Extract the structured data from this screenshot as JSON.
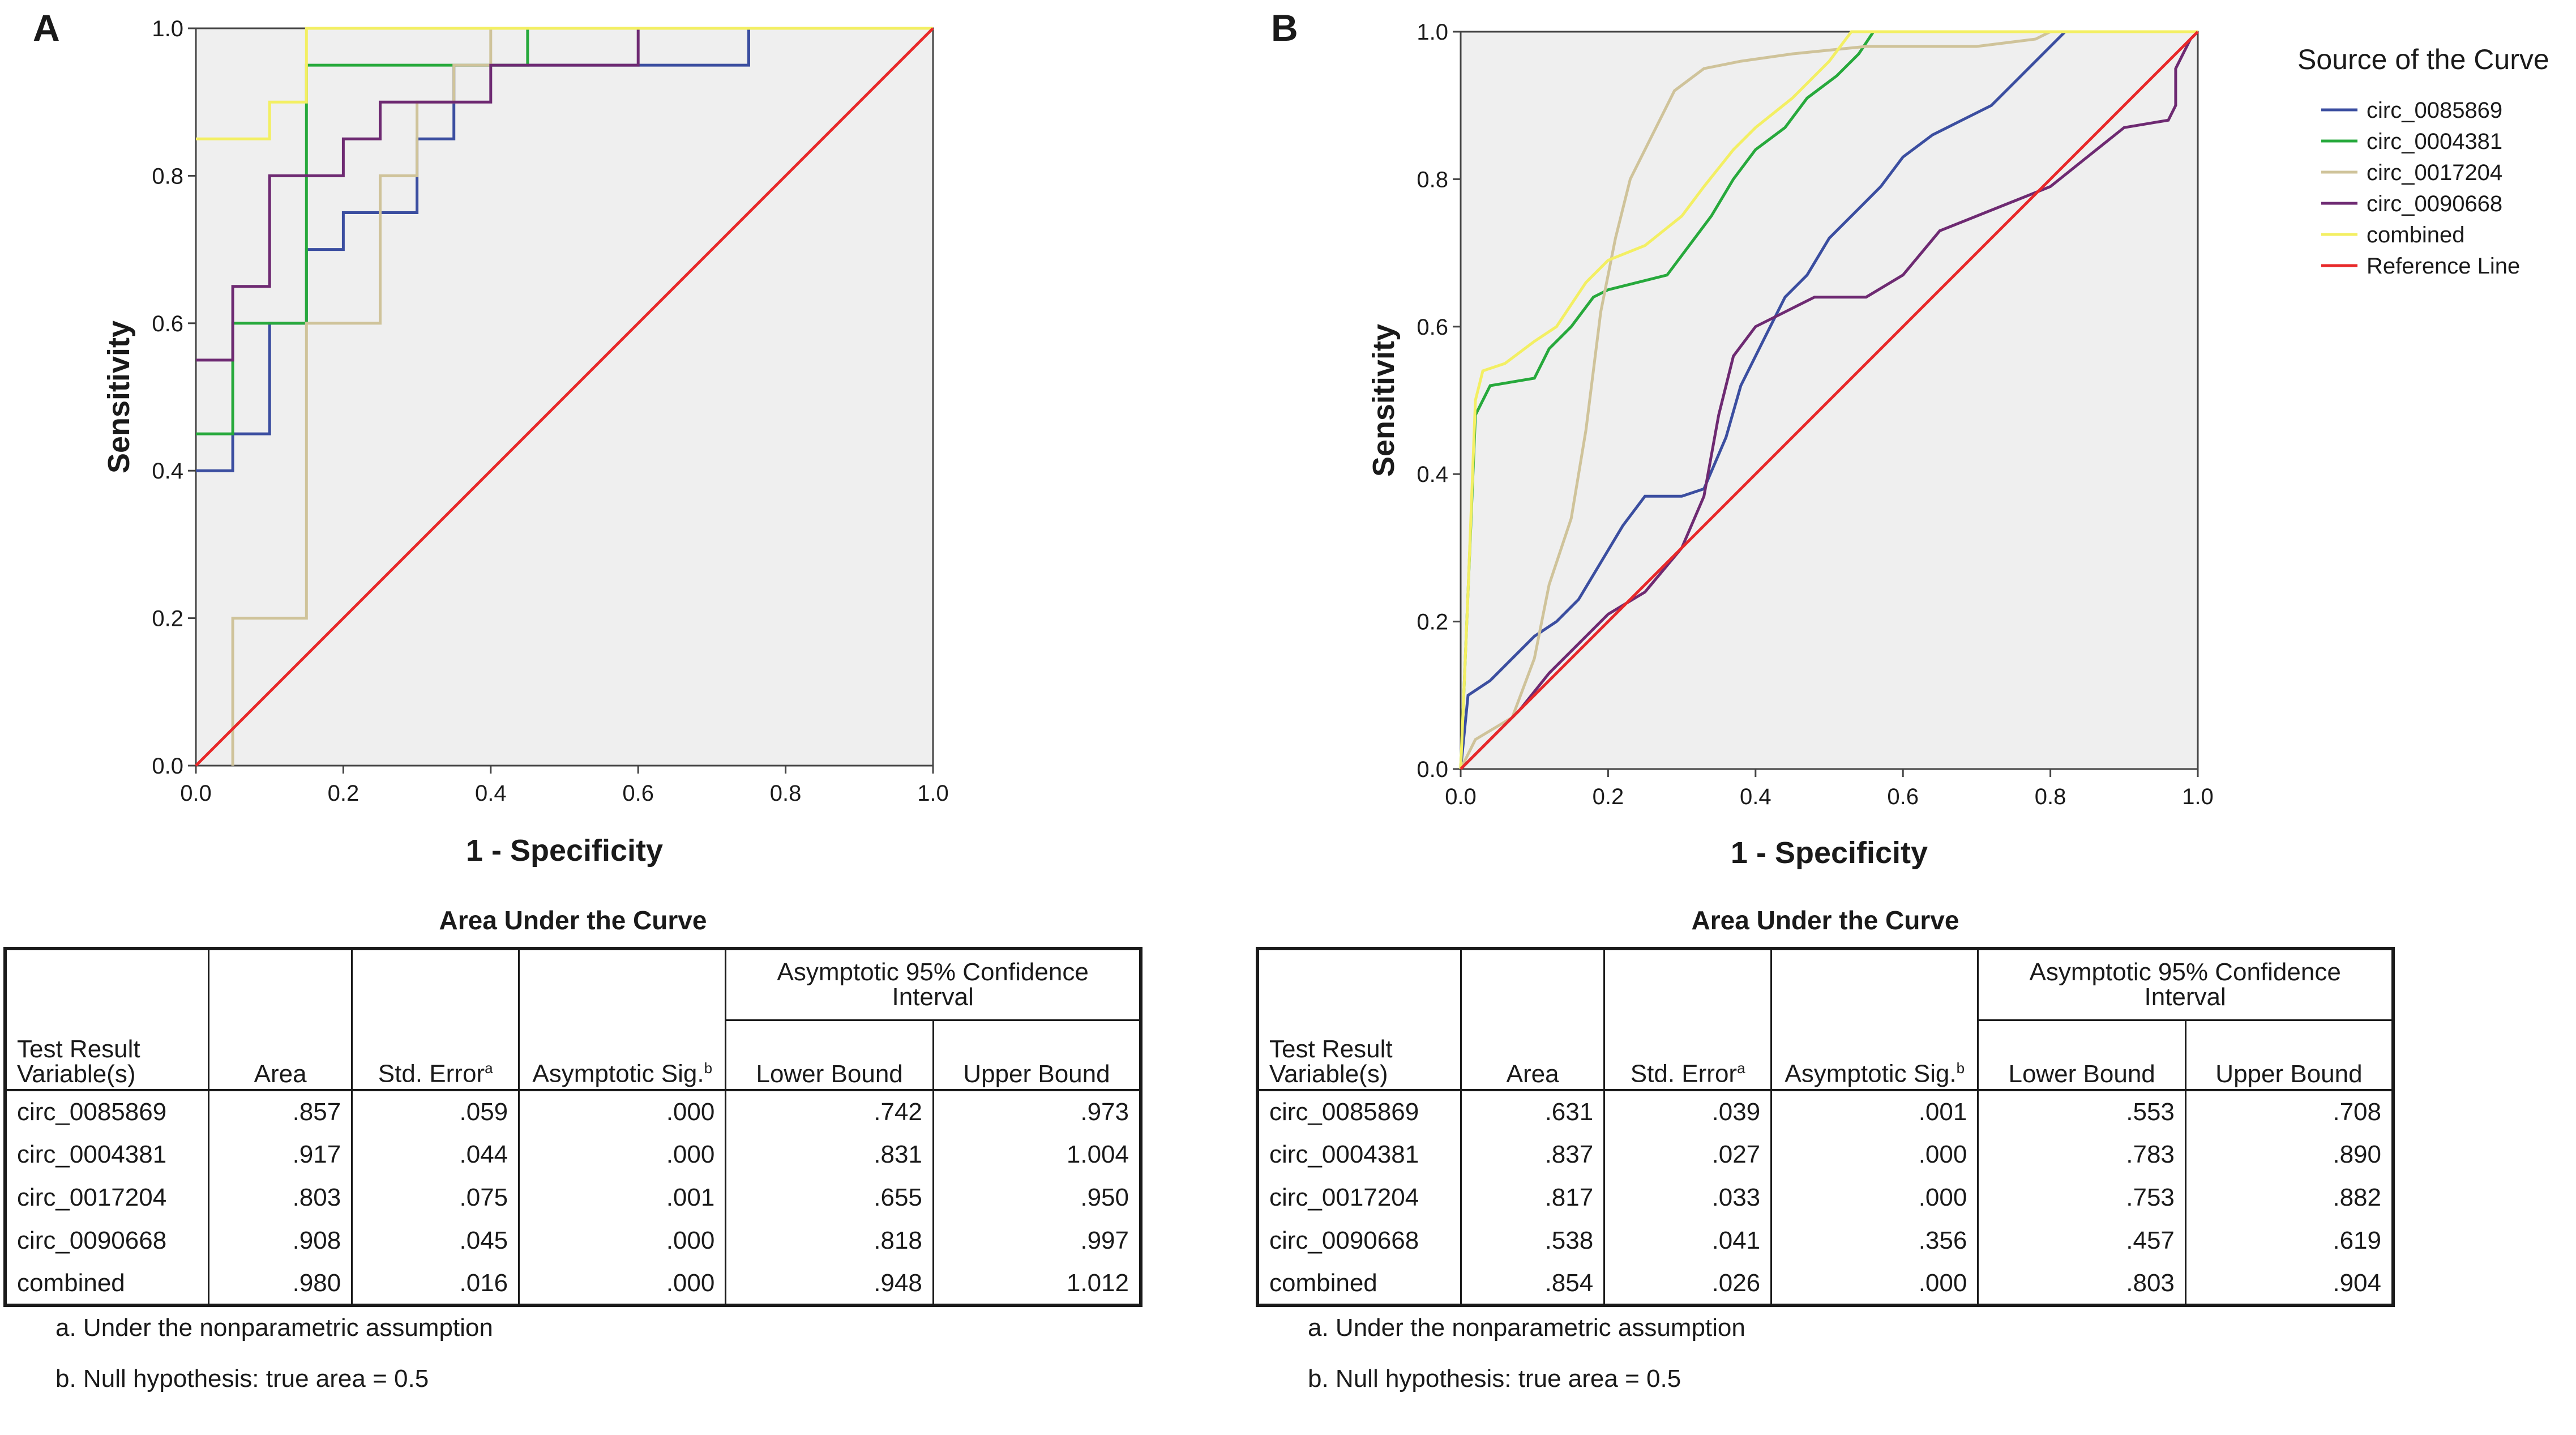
{
  "panels": [
    {
      "letter": "A",
      "axis_title_x": "1 - Specificity",
      "axis_title_y": "Sensitivity",
      "table": {
        "title": "Area Under the Curve",
        "col_test": "Test Result Variable(s)",
        "col_area": "Area",
        "col_se": "Std. Error",
        "col_se_sup": "a",
        "col_sig": "Asymptotic Sig.",
        "col_sig_sup": "b",
        "col_ci": "Asymptotic 95% Confidence Interval",
        "col_lower": "Lower Bound",
        "col_upper": "Upper Bound",
        "rows": [
          {
            "name": "circ_0085869",
            "area": ".857",
            "se": ".059",
            "sig": ".000",
            "lower": ".742",
            "upper": ".973"
          },
          {
            "name": "circ_0004381",
            "area": ".917",
            "se": ".044",
            "sig": ".000",
            "lower": ".831",
            "upper": "1.004"
          },
          {
            "name": "circ_0017204",
            "area": ".803",
            "se": ".075",
            "sig": ".001",
            "lower": ".655",
            "upper": ".950"
          },
          {
            "name": "circ_0090668",
            "area": ".908",
            "se": ".045",
            "sig": ".000",
            "lower": ".818",
            "upper": ".997"
          },
          {
            "name": "combined",
            "area": ".980",
            "se": ".016",
            "sig": ".000",
            "lower": ".948",
            "upper": "1.012"
          }
        ],
        "note_a": "a. Under the nonparametric assumption",
        "note_b": "b. Null hypothesis: true area = 0.5"
      }
    },
    {
      "letter": "B",
      "axis_title_x": "1 - Specificity",
      "axis_title_y": "Sensitivity",
      "table": {
        "title": "Area Under the Curve",
        "col_test": "Test Result Variable(s)",
        "col_area": "Area",
        "col_se": "Std. Error",
        "col_se_sup": "a",
        "col_sig": "Asymptotic Sig.",
        "col_sig_sup": "b",
        "col_ci": "Asymptotic 95% Confidence Interval",
        "col_lower": "Lower Bound",
        "col_upper": "Upper Bound",
        "rows": [
          {
            "name": "circ_0085869",
            "area": ".631",
            "se": ".039",
            "sig": ".001",
            "lower": ".553",
            "upper": ".708"
          },
          {
            "name": "circ_0004381",
            "area": ".837",
            "se": ".027",
            "sig": ".000",
            "lower": ".783",
            "upper": ".890"
          },
          {
            "name": "circ_0017204",
            "area": ".817",
            "se": ".033",
            "sig": ".000",
            "lower": ".753",
            "upper": ".882"
          },
          {
            "name": "circ_0090668",
            "area": ".538",
            "se": ".041",
            "sig": ".356",
            "lower": ".457",
            "upper": ".619"
          },
          {
            "name": "combined",
            "area": ".854",
            "se": ".026",
            "sig": ".000",
            "lower": ".803",
            "upper": ".904"
          }
        ],
        "note_a": "a. Under the nonparametric assumption",
        "note_b": "b. Null hypothesis: true area = 0.5"
      }
    }
  ],
  "legend": {
    "title": "Source of the Curve",
    "items": [
      {
        "label": "circ_0085869",
        "color": "#3b4ea0"
      },
      {
        "label": "circ_0004381",
        "color": "#27a93c"
      },
      {
        "label": "circ_0017204",
        "color": "#cfc39a"
      },
      {
        "label": "circ_0090668",
        "color": "#6e2a72"
      },
      {
        "label": "combined",
        "color": "#f3ef63"
      },
      {
        "label": "Reference Line",
        "color": "#e8292a"
      }
    ]
  },
  "chart_data": [
    {
      "type": "line",
      "panel": "A",
      "xlabel": "1 - Specificity",
      "ylabel": "Sensitivity",
      "xlim": [
        0,
        1
      ],
      "ylim": [
        0,
        1
      ],
      "xticks": [
        "0.0",
        "0.2",
        "0.4",
        "0.6",
        "0.8",
        "1.0"
      ],
      "yticks": [
        "0.0",
        "0.2",
        "0.4",
        "0.6",
        "0.8",
        "1.0"
      ],
      "background": "#efefef",
      "series": [
        {
          "name": "circ_0085869",
          "color": "#3b4ea0",
          "points": [
            [
              0,
              0.4
            ],
            [
              0.05,
              0.4
            ],
            [
              0.05,
              0.45
            ],
            [
              0.1,
              0.45
            ],
            [
              0.1,
              0.6
            ],
            [
              0.15,
              0.6
            ],
            [
              0.15,
              0.65
            ],
            [
              0.15,
              0.7
            ],
            [
              0.2,
              0.7
            ],
            [
              0.2,
              0.75
            ],
            [
              0.3,
              0.75
            ],
            [
              0.3,
              0.8
            ],
            [
              0.3,
              0.85
            ],
            [
              0.35,
              0.85
            ],
            [
              0.35,
              0.9
            ],
            [
              0.35,
              0.95
            ],
            [
              0.75,
              0.95
            ],
            [
              0.75,
              1.0
            ],
            [
              1,
              1
            ]
          ]
        },
        {
          "name": "circ_0004381",
          "color": "#27a93c",
          "points": [
            [
              0,
              0.45
            ],
            [
              0.05,
              0.45
            ],
            [
              0.05,
              0.6
            ],
            [
              0.15,
              0.6
            ],
            [
              0.15,
              0.95
            ],
            [
              0.45,
              0.95
            ],
            [
              0.45,
              1.0
            ],
            [
              1,
              1
            ]
          ]
        },
        {
          "name": "circ_0017204",
          "color": "#cfc39a",
          "points": [
            [
              0.05,
              0
            ],
            [
              0.05,
              0.2
            ],
            [
              0.15,
              0.2
            ],
            [
              0.15,
              0.6
            ],
            [
              0.25,
              0.6
            ],
            [
              0.25,
              0.8
            ],
            [
              0.3,
              0.8
            ],
            [
              0.3,
              0.9
            ],
            [
              0.35,
              0.9
            ],
            [
              0.35,
              0.95
            ],
            [
              0.4,
              0.95
            ],
            [
              0.4,
              1.0
            ],
            [
              1,
              1
            ]
          ]
        },
        {
          "name": "circ_0090668",
          "color": "#6e2a72",
          "points": [
            [
              0,
              0.55
            ],
            [
              0.05,
              0.55
            ],
            [
              0.05,
              0.65
            ],
            [
              0.1,
              0.65
            ],
            [
              0.1,
              0.8
            ],
            [
              0.2,
              0.8
            ],
            [
              0.2,
              0.85
            ],
            [
              0.25,
              0.85
            ],
            [
              0.25,
              0.9
            ],
            [
              0.4,
              0.9
            ],
            [
              0.4,
              0.95
            ],
            [
              0.6,
              0.95
            ],
            [
              0.6,
              1.0
            ],
            [
              1,
              1
            ]
          ]
        },
        {
          "name": "combined",
          "color": "#f3ef63",
          "points": [
            [
              0,
              0.85
            ],
            [
              0.1,
              0.85
            ],
            [
              0.1,
              0.9
            ],
            [
              0.15,
              0.9
            ],
            [
              0.15,
              1.0
            ],
            [
              1,
              1
            ]
          ]
        },
        {
          "name": "Reference Line",
          "color": "#e8292a",
          "points": [
            [
              0,
              0
            ],
            [
              1,
              1
            ]
          ]
        }
      ]
    },
    {
      "type": "line",
      "panel": "B",
      "xlabel": "1 - Specificity",
      "ylabel": "Sensitivity",
      "xlim": [
        0,
        1
      ],
      "ylim": [
        0,
        1
      ],
      "xticks": [
        "0.0",
        "0.2",
        "0.4",
        "0.6",
        "0.8",
        "1.0"
      ],
      "yticks": [
        "0.0",
        "0.2",
        "0.4",
        "0.6",
        "0.8",
        "1.0"
      ],
      "background": "#efefef",
      "series": [
        {
          "name": "circ_0085869",
          "color": "#3b4ea0",
          "points": [
            [
              0,
              0
            ],
            [
              0.01,
              0.1
            ],
            [
              0.04,
              0.12
            ],
            [
              0.07,
              0.15
            ],
            [
              0.1,
              0.18
            ],
            [
              0.13,
              0.2
            ],
            [
              0.16,
              0.23
            ],
            [
              0.19,
              0.28
            ],
            [
              0.22,
              0.33
            ],
            [
              0.25,
              0.37
            ],
            [
              0.3,
              0.37
            ],
            [
              0.33,
              0.38
            ],
            [
              0.36,
              0.45
            ],
            [
              0.38,
              0.52
            ],
            [
              0.41,
              0.58
            ],
            [
              0.44,
              0.64
            ],
            [
              0.47,
              0.67
            ],
            [
              0.5,
              0.72
            ],
            [
              0.54,
              0.76
            ],
            [
              0.57,
              0.79
            ],
            [
              0.6,
              0.83
            ],
            [
              0.64,
              0.86
            ],
            [
              0.68,
              0.88
            ],
            [
              0.72,
              0.9
            ],
            [
              0.76,
              0.94
            ],
            [
              0.8,
              0.98
            ],
            [
              0.82,
              1.0
            ],
            [
              1,
              1
            ]
          ]
        },
        {
          "name": "circ_0004381",
          "color": "#27a93c",
          "points": [
            [
              0,
              0
            ],
            [
              0.01,
              0.24
            ],
            [
              0.02,
              0.48
            ],
            [
              0.04,
              0.52
            ],
            [
              0.1,
              0.53
            ],
            [
              0.12,
              0.57
            ],
            [
              0.15,
              0.6
            ],
            [
              0.18,
              0.64
            ],
            [
              0.2,
              0.65
            ],
            [
              0.28,
              0.67
            ],
            [
              0.31,
              0.71
            ],
            [
              0.34,
              0.75
            ],
            [
              0.37,
              0.8
            ],
            [
              0.4,
              0.84
            ],
            [
              0.44,
              0.87
            ],
            [
              0.47,
              0.91
            ],
            [
              0.51,
              0.94
            ],
            [
              0.54,
              0.97
            ],
            [
              0.56,
              1.0
            ],
            [
              1,
              1
            ]
          ]
        },
        {
          "name": "circ_0017204",
          "color": "#cfc39a",
          "points": [
            [
              0,
              0
            ],
            [
              0.02,
              0.04
            ],
            [
              0.07,
              0.07
            ],
            [
              0.1,
              0.15
            ],
            [
              0.12,
              0.25
            ],
            [
              0.15,
              0.34
            ],
            [
              0.17,
              0.46
            ],
            [
              0.19,
              0.62
            ],
            [
              0.21,
              0.72
            ],
            [
              0.23,
              0.8
            ],
            [
              0.26,
              0.86
            ],
            [
              0.29,
              0.92
            ],
            [
              0.33,
              0.95
            ],
            [
              0.38,
              0.96
            ],
            [
              0.45,
              0.97
            ],
            [
              0.55,
              0.98
            ],
            [
              0.7,
              0.98
            ],
            [
              0.78,
              0.99
            ],
            [
              0.8,
              1.0
            ],
            [
              1,
              1
            ]
          ]
        },
        {
          "name": "circ_0090668",
          "color": "#6e2a72",
          "points": [
            [
              0,
              0
            ],
            [
              0.04,
              0.04
            ],
            [
              0.08,
              0.08
            ],
            [
              0.12,
              0.13
            ],
            [
              0.16,
              0.17
            ],
            [
              0.2,
              0.21
            ],
            [
              0.25,
              0.24
            ],
            [
              0.3,
              0.3
            ],
            [
              0.33,
              0.37
            ],
            [
              0.35,
              0.48
            ],
            [
              0.37,
              0.56
            ],
            [
              0.4,
              0.6
            ],
            [
              0.44,
              0.62
            ],
            [
              0.48,
              0.64
            ],
            [
              0.55,
              0.64
            ],
            [
              0.6,
              0.67
            ],
            [
              0.65,
              0.73
            ],
            [
              0.7,
              0.75
            ],
            [
              0.75,
              0.77
            ],
            [
              0.8,
              0.79
            ],
            [
              0.85,
              0.83
            ],
            [
              0.9,
              0.87
            ],
            [
              0.96,
              0.88
            ],
            [
              0.97,
              0.9
            ],
            [
              0.97,
              0.95
            ],
            [
              0.99,
              0.99
            ],
            [
              1,
              1
            ]
          ]
        },
        {
          "name": "combined",
          "color": "#f3ef63",
          "points": [
            [
              0,
              0
            ],
            [
              0.01,
              0.24
            ],
            [
              0.02,
              0.5
            ],
            [
              0.03,
              0.54
            ],
            [
              0.06,
              0.55
            ],
            [
              0.1,
              0.58
            ],
            [
              0.13,
              0.6
            ],
            [
              0.17,
              0.66
            ],
            [
              0.2,
              0.69
            ],
            [
              0.25,
              0.71
            ],
            [
              0.3,
              0.75
            ],
            [
              0.33,
              0.79
            ],
            [
              0.37,
              0.84
            ],
            [
              0.4,
              0.87
            ],
            [
              0.45,
              0.91
            ],
            [
              0.5,
              0.96
            ],
            [
              0.53,
              1.0
            ],
            [
              1,
              1
            ]
          ]
        },
        {
          "name": "Reference Line",
          "color": "#e8292a",
          "points": [
            [
              0,
              0
            ],
            [
              1,
              1
            ]
          ]
        }
      ]
    }
  ]
}
